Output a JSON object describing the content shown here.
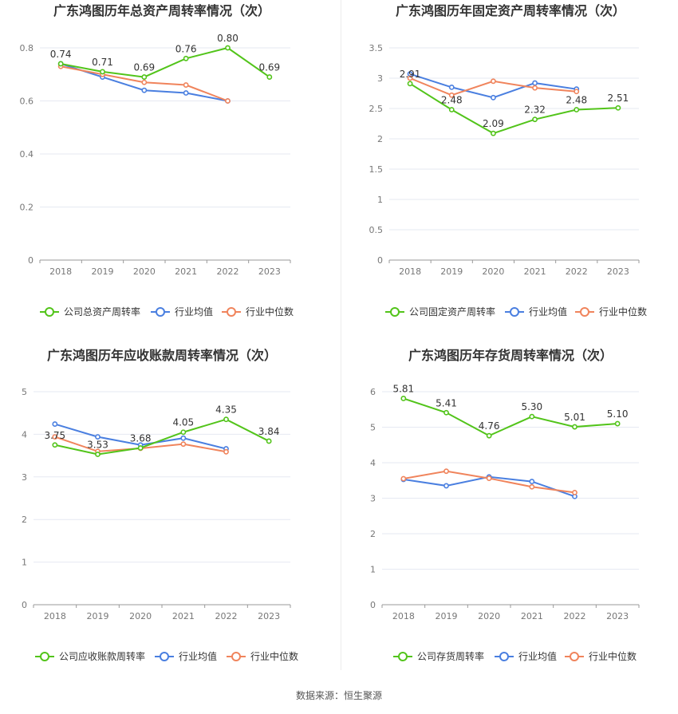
{
  "footer": {
    "source": "数据来源：恒生聚源"
  },
  "charts": [
    {
      "title": "广东鸿图历年总资产周转率情况（次）",
      "chart_data": {
        "type": "line",
        "categories": [
          "2018",
          "2019",
          "2020",
          "2021",
          "2022",
          "2023"
        ],
        "ylim": [
          0,
          0.8
        ],
        "yticks": [
          "0",
          "0.2",
          "0.4",
          "0.6",
          "0.8"
        ],
        "grid": true,
        "legend_position": "bottom",
        "series": [
          {
            "name": "公司总资产周转率",
            "values": [
              0.74,
              0.71,
              0.69,
              0.76,
              0.8,
              0.69
            ],
            "labels": [
              "0.74",
              "0.71",
              "0.69",
              "0.76",
              "0.80",
              "0.69"
            ],
            "color": "#52c41a"
          },
          {
            "name": "行业均值",
            "values": [
              0.74,
              0.69,
              0.64,
              0.63,
              0.6,
              null
            ],
            "color": "#4a7fe0"
          },
          {
            "name": "行业中位数",
            "values": [
              0.73,
              0.7,
              0.67,
              0.66,
              0.6,
              null
            ],
            "color": "#f0845c"
          }
        ]
      }
    },
    {
      "title": "广东鸿图历年固定资产周转率情况（次）",
      "chart_data": {
        "type": "line",
        "categories": [
          "2018",
          "2019",
          "2020",
          "2021",
          "2022",
          "2023"
        ],
        "ylim": [
          0,
          3.5
        ],
        "yticks": [
          "0",
          "0.5",
          "1",
          "1.5",
          "2",
          "2.5",
          "3",
          "3.5"
        ],
        "grid": true,
        "legend_position": "bottom",
        "series": [
          {
            "name": "公司固定资产周转率",
            "values": [
              2.91,
              2.48,
              2.09,
              2.32,
              2.48,
              2.51
            ],
            "labels": [
              "2.91",
              "2.48",
              "2.09",
              "2.32",
              "2.48",
              "2.51"
            ],
            "color": "#52c41a"
          },
          {
            "name": "行业均值",
            "values": [
              3.07,
              2.85,
              2.68,
              2.92,
              2.82,
              null
            ],
            "color": "#4a7fe0"
          },
          {
            "name": "行业中位数",
            "values": [
              3.0,
              2.72,
              2.95,
              2.84,
              2.78,
              null
            ],
            "color": "#f0845c"
          }
        ]
      }
    },
    {
      "title": "广东鸿图历年应收账款周转率情况（次）",
      "chart_data": {
        "type": "line",
        "categories": [
          "2018",
          "2019",
          "2020",
          "2021",
          "2022",
          "2023"
        ],
        "ylim": [
          0,
          5
        ],
        "yticks": [
          "0",
          "1",
          "2",
          "3",
          "4",
          "5"
        ],
        "grid": true,
        "legend_position": "bottom",
        "series": [
          {
            "name": "公司应收账款周转率",
            "values": [
              3.75,
              3.53,
              3.68,
              4.05,
              4.35,
              3.84
            ],
            "labels": [
              "3.75",
              "3.53",
              "3.68",
              "4.05",
              "4.35",
              "3.84"
            ],
            "color": "#52c41a"
          },
          {
            "name": "行业均值",
            "values": [
              4.24,
              3.94,
              3.75,
              3.91,
              3.66,
              null
            ],
            "color": "#4a7fe0"
          },
          {
            "name": "行业中位数",
            "values": [
              3.94,
              3.6,
              3.67,
              3.77,
              3.59,
              null
            ],
            "color": "#f0845c"
          }
        ]
      }
    },
    {
      "title": "广东鸿图历年存货周转率情况（次）",
      "chart_data": {
        "type": "line",
        "categories": [
          "2018",
          "2019",
          "2020",
          "2021",
          "2022",
          "2023"
        ],
        "ylim": [
          0,
          6
        ],
        "yticks": [
          "0",
          "1",
          "2",
          "3",
          "4",
          "5",
          "6"
        ],
        "grid": true,
        "legend_position": "bottom",
        "series": [
          {
            "name": "公司存货周转率",
            "values": [
              5.81,
              5.41,
              4.76,
              5.3,
              5.01,
              5.1
            ],
            "labels": [
              "5.81",
              "5.41",
              "4.76",
              "5.30",
              "5.01",
              "5.10"
            ],
            "color": "#52c41a"
          },
          {
            "name": "行业均值",
            "values": [
              3.53,
              3.35,
              3.6,
              3.47,
              3.05,
              null
            ],
            "color": "#4a7fe0"
          },
          {
            "name": "行业中位数",
            "values": [
              3.55,
              3.76,
              3.56,
              3.32,
              3.16,
              null
            ],
            "color": "#f0845c"
          }
        ]
      }
    }
  ]
}
